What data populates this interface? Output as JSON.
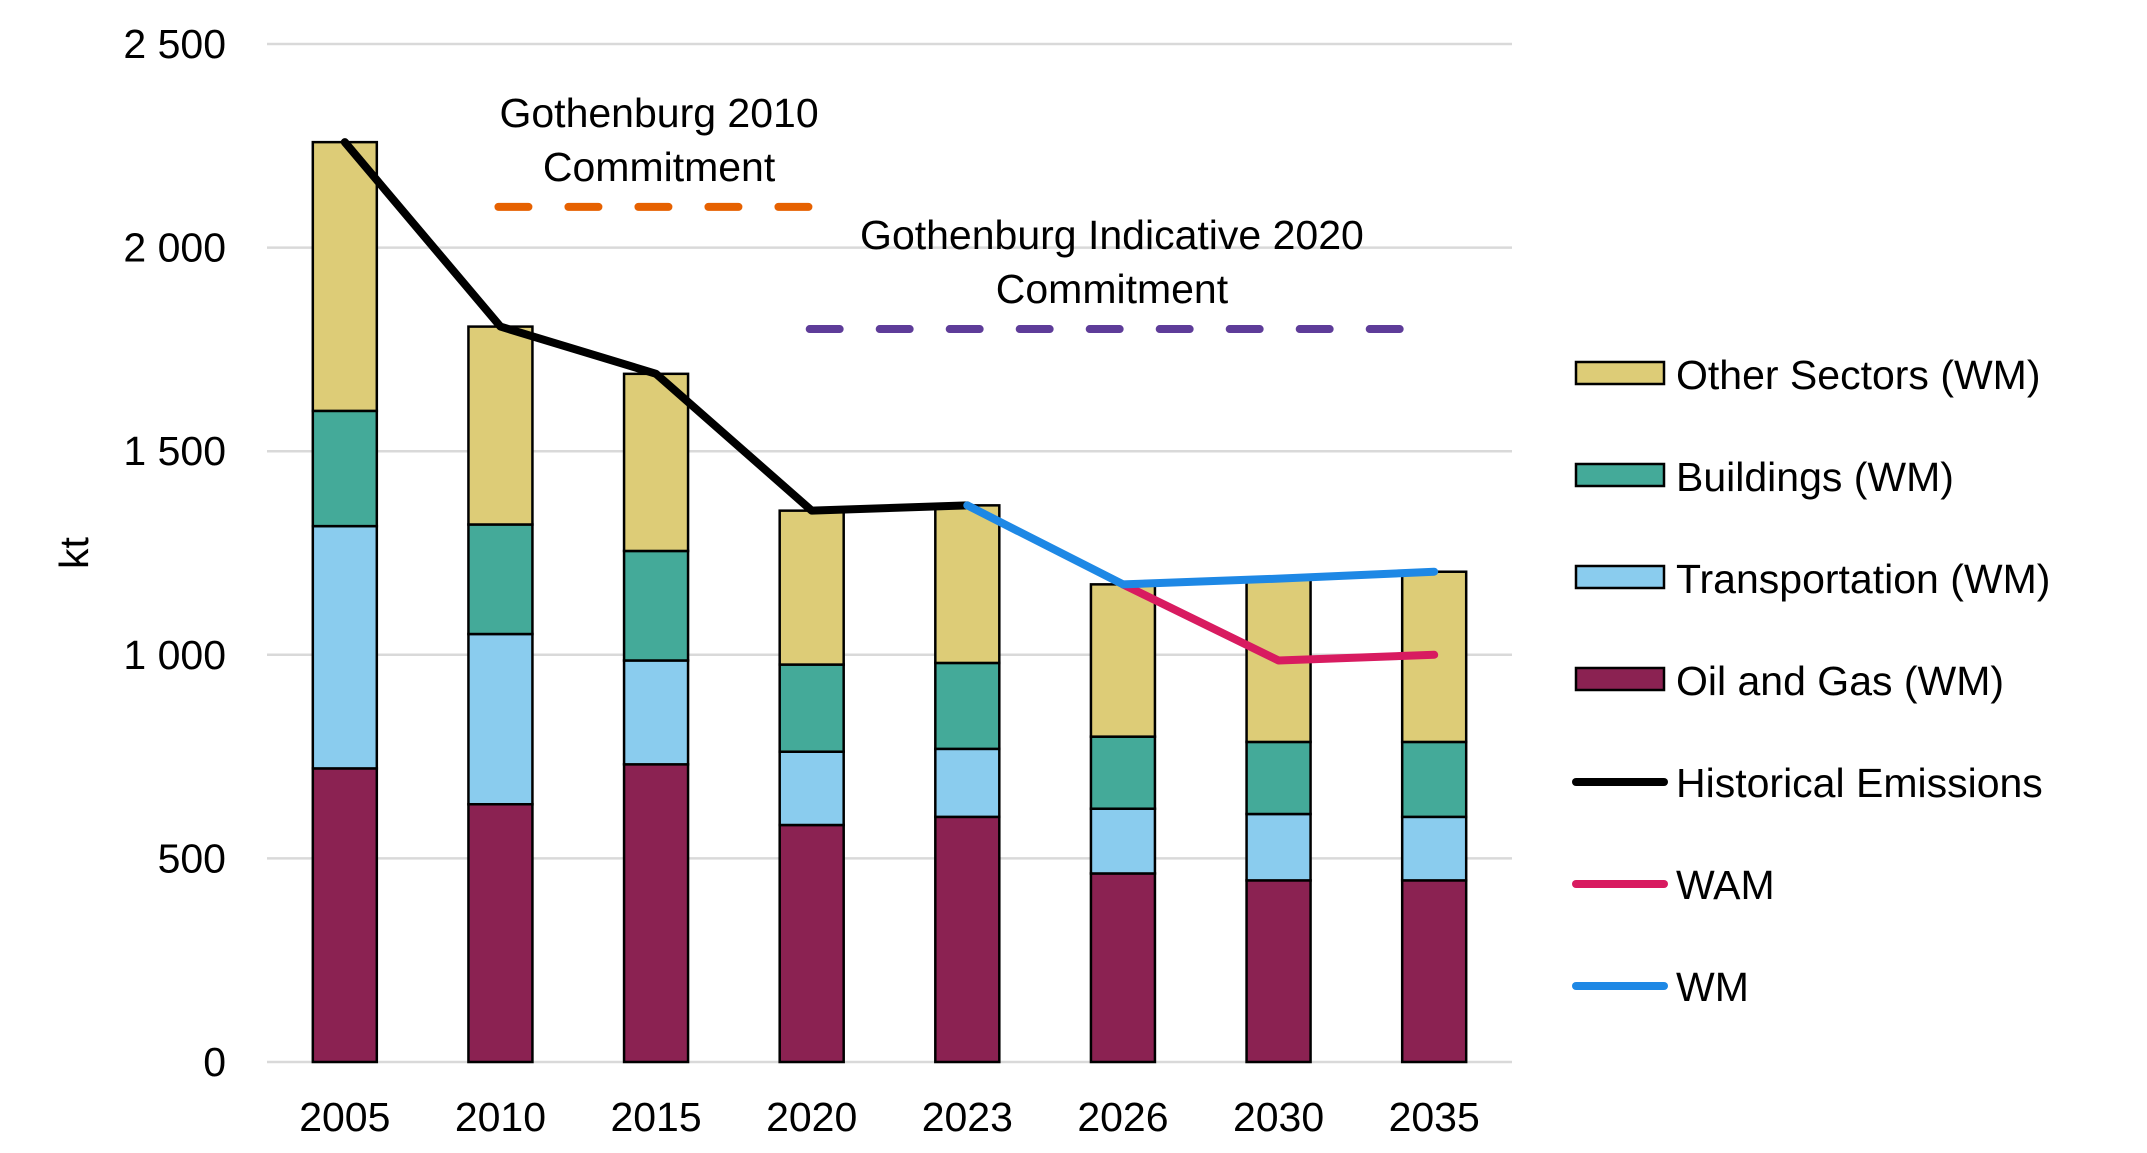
{
  "chart_data": {
    "type": "bar",
    "stacked": true,
    "title": "",
    "xlabel": "",
    "ylabel": "kt",
    "ylim": [
      0,
      2500
    ],
    "yticks": [
      0,
      500,
      1000,
      1500,
      2000,
      2500
    ],
    "ytick_labels": [
      "0",
      "500",
      "1 000",
      "1 500",
      "2 000",
      "2 500"
    ],
    "grid": true,
    "legend_position": "right",
    "categories": [
      "2005",
      "2010",
      "2015",
      "2020",
      "2023",
      "2026",
      "2030",
      "2035"
    ],
    "series": [
      {
        "name": "Oil and Gas (WM)",
        "color": "#8B2252",
        "values": [
          721,
          633,
          731,
          582,
          602,
          463,
          446,
          446
        ]
      },
      {
        "name": "Transportation (WM)",
        "color": "#8ACCEE",
        "values": [
          595,
          418,
          255,
          180,
          167,
          159,
          163,
          156
        ]
      },
      {
        "name": "Buildings (WM)",
        "color": "#44AA99",
        "values": [
          283,
          269,
          269,
          214,
          211,
          177,
          177,
          184
        ]
      },
      {
        "name": "Other Sectors (WM)",
        "color": "#DDCC77",
        "values": [
          660,
          486,
          435,
          378,
          387,
          374,
          401,
          418
        ]
      }
    ],
    "lines": [
      {
        "name": "Historical Emissions",
        "color": "#000000",
        "x": [
          "2005",
          "2010",
          "2015",
          "2020",
          "2023"
        ],
        "values": [
          2259,
          1806,
          1690,
          1354,
          1367
        ]
      },
      {
        "name": "WAM",
        "color": "#D81B60",
        "x": [
          "2026",
          "2030",
          "2035"
        ],
        "values": [
          1173,
          986,
          1000
        ]
      },
      {
        "name": "WM",
        "color": "#1E88E5",
        "x": [
          "2023",
          "2026",
          "2030",
          "2035"
        ],
        "values": [
          1367,
          1173,
          1187,
          1204
        ]
      }
    ],
    "reference_lines": [
      {
        "label_lines": [
          "Gothenburg 2010",
          "Commitment"
        ],
        "value": 2100,
        "from": "2010",
        "to": "2020",
        "color": "#E66100",
        "style": "dashed"
      },
      {
        "label_lines": [
          "Gothenburg Indicative 2020",
          "Commitment"
        ],
        "value": 1800,
        "from": "2020",
        "to": "2035",
        "color": "#5E3C99",
        "style": "dashed"
      }
    ],
    "legend_order": [
      "Other Sectors (WM)",
      "Buildings (WM)",
      "Transportation (WM)",
      "Oil and Gas (WM)",
      "Historical Emissions",
      "WAM",
      "WM"
    ]
  }
}
